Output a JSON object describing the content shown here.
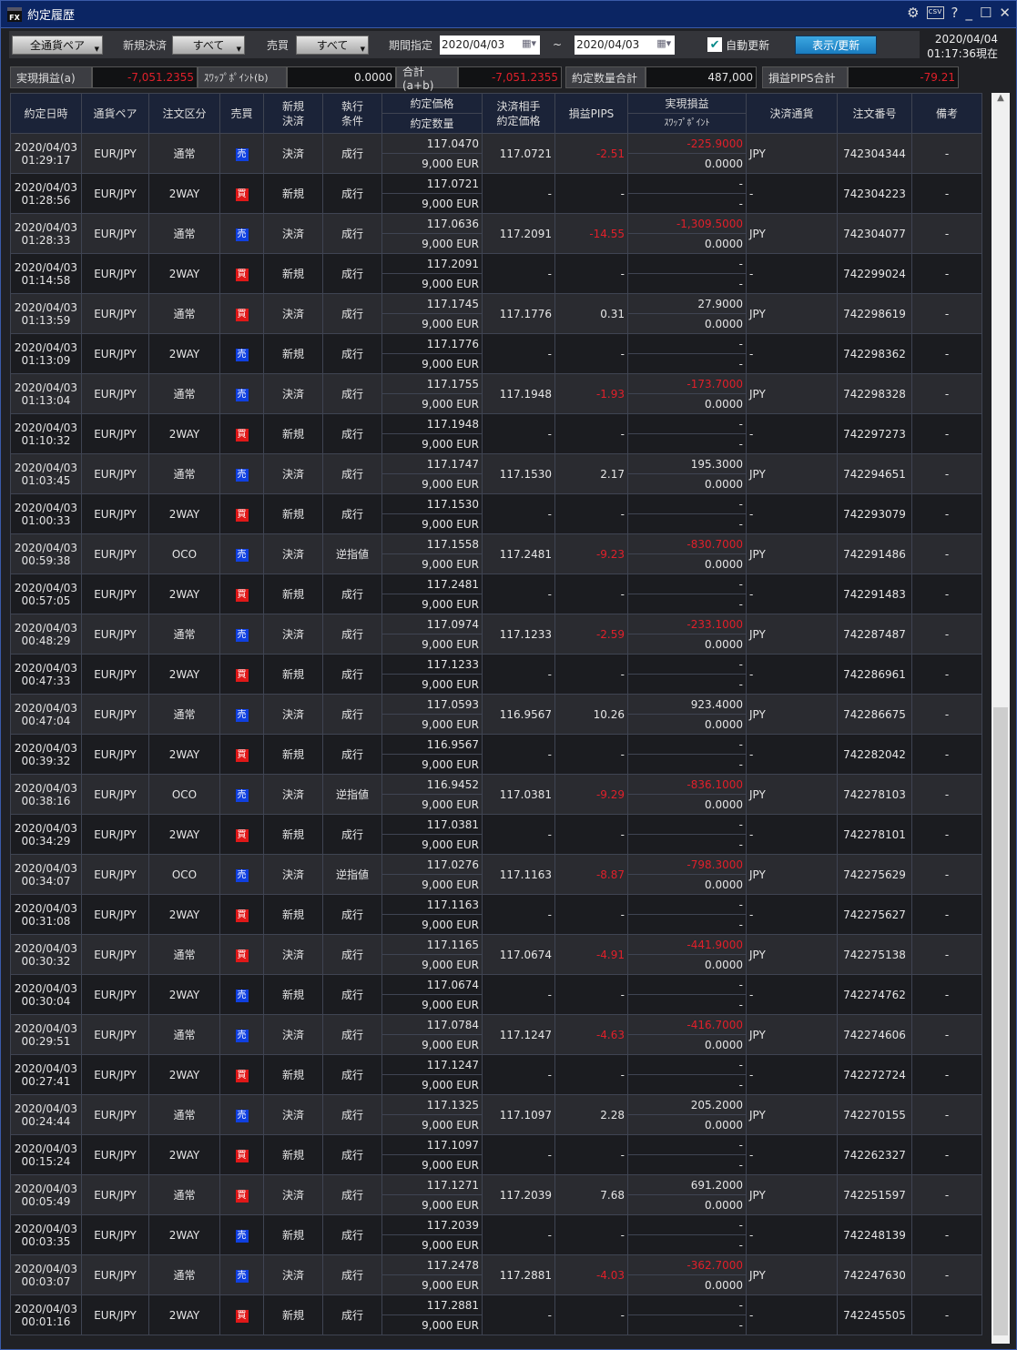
{
  "window": {
    "title": "約定履歴",
    "controls": [
      "settings-icon",
      "csv-icon",
      "help-icon",
      "minimize-icon",
      "maximize-icon",
      "close-icon"
    ]
  },
  "toolbar": {
    "pair": "全通貨ペア",
    "new_close_label": "新規決済",
    "new_close_value": "すべて",
    "side_label": "売買",
    "side_value": "すべて",
    "period_label": "期間指定",
    "date_from": "2020/04/03",
    "tilde": "~",
    "date_to": "2020/04/03",
    "auto_update": "自動更新",
    "auto_update_checked": true,
    "refresh": "表示/更新",
    "now_date": "2020/04/04",
    "now_time": "01:17:36現在"
  },
  "summary": {
    "pnl_label": "実現損益(a)",
    "pnl": "-7,051.2355",
    "swap_label": "ｽﾜｯﾌﾟﾎﾟｲﾝﾄ(b)",
    "swap": "0.0000",
    "total_label": "合計(a+b)",
    "total": "-7,051.2355",
    "qty_label": "約定数量合計",
    "qty": "487,000",
    "pips_label": "損益PIPS合計",
    "pips": "-79.21"
  },
  "colors": {
    "sell": "#1040e0",
    "buy": "#e01818",
    "negative": "#e0202a",
    "header": "#1b2338"
  },
  "table": {
    "headers": {
      "datetime": "約定日時",
      "pair": "通貨ペア",
      "order_type": "注文区分",
      "side": "売買",
      "new_close": [
        "新規",
        "決済"
      ],
      "condition": [
        "執行",
        "条件"
      ],
      "price": "約定価格",
      "qty": "約定数量",
      "close_price": [
        "決済相手",
        "約定価格"
      ],
      "pips": "損益PIPS",
      "pnl": "実現損益",
      "swap": "ｽﾜｯﾌﾟﾎﾟｲﾝﾄ",
      "currency": "決済通貨",
      "order_no": "注文番号",
      "note": "備考"
    },
    "pair": "EUR/JPY",
    "date": "2020/04/03",
    "qty": "9,000 EUR",
    "note": "-",
    "rows": [
      [
        "01:29:17",
        "通常",
        "売",
        "決済",
        "成行",
        "117.0470",
        "117.0721",
        "-2.51",
        "-225.9000",
        "0.0000",
        "JPY",
        "742304344"
      ],
      [
        "01:28:56",
        "2WAY",
        "買",
        "新規",
        "成行",
        "117.0721",
        "-",
        "-",
        "-",
        "-",
        "-",
        "742304223"
      ],
      [
        "01:28:33",
        "通常",
        "売",
        "決済",
        "成行",
        "117.0636",
        "117.2091",
        "-14.55",
        "-1,309.5000",
        "0.0000",
        "JPY",
        "742304077"
      ],
      [
        "01:14:58",
        "2WAY",
        "買",
        "新規",
        "成行",
        "117.2091",
        "-",
        "-",
        "-",
        "-",
        "-",
        "742299024"
      ],
      [
        "01:13:59",
        "通常",
        "買",
        "決済",
        "成行",
        "117.1745",
        "117.1776",
        "0.31",
        "27.9000",
        "0.0000",
        "JPY",
        "742298619"
      ],
      [
        "01:13:09",
        "2WAY",
        "売",
        "新規",
        "成行",
        "117.1776",
        "-",
        "-",
        "-",
        "-",
        "-",
        "742298362"
      ],
      [
        "01:13:04",
        "通常",
        "売",
        "決済",
        "成行",
        "117.1755",
        "117.1948",
        "-1.93",
        "-173.7000",
        "0.0000",
        "JPY",
        "742298328"
      ],
      [
        "01:10:32",
        "2WAY",
        "買",
        "新規",
        "成行",
        "117.1948",
        "-",
        "-",
        "-",
        "-",
        "-",
        "742297273"
      ],
      [
        "01:03:45",
        "通常",
        "売",
        "決済",
        "成行",
        "117.1747",
        "117.1530",
        "2.17",
        "195.3000",
        "0.0000",
        "JPY",
        "742294651"
      ],
      [
        "01:00:33",
        "2WAY",
        "買",
        "新規",
        "成行",
        "117.1530",
        "-",
        "-",
        "-",
        "-",
        "-",
        "742293079"
      ],
      [
        "00:59:38",
        "OCO",
        "売",
        "決済",
        "逆指値",
        "117.1558",
        "117.2481",
        "-9.23",
        "-830.7000",
        "0.0000",
        "JPY",
        "742291486"
      ],
      [
        "00:57:05",
        "2WAY",
        "買",
        "新規",
        "成行",
        "117.2481",
        "-",
        "-",
        "-",
        "-",
        "-",
        "742291483"
      ],
      [
        "00:48:29",
        "通常",
        "売",
        "決済",
        "成行",
        "117.0974",
        "117.1233",
        "-2.59",
        "-233.1000",
        "0.0000",
        "JPY",
        "742287487"
      ],
      [
        "00:47:33",
        "2WAY",
        "買",
        "新規",
        "成行",
        "117.1233",
        "-",
        "-",
        "-",
        "-",
        "-",
        "742286961"
      ],
      [
        "00:47:04",
        "通常",
        "売",
        "決済",
        "成行",
        "117.0593",
        "116.9567",
        "10.26",
        "923.4000",
        "0.0000",
        "JPY",
        "742286675"
      ],
      [
        "00:39:32",
        "2WAY",
        "買",
        "新規",
        "成行",
        "116.9567",
        "-",
        "-",
        "-",
        "-",
        "-",
        "742282042"
      ],
      [
        "00:38:16",
        "OCO",
        "売",
        "決済",
        "逆指値",
        "116.9452",
        "117.0381",
        "-9.29",
        "-836.1000",
        "0.0000",
        "JPY",
        "742278103"
      ],
      [
        "00:34:29",
        "2WAY",
        "買",
        "新規",
        "成行",
        "117.0381",
        "-",
        "-",
        "-",
        "-",
        "-",
        "742278101"
      ],
      [
        "00:34:07",
        "OCO",
        "売",
        "決済",
        "逆指値",
        "117.0276",
        "117.1163",
        "-8.87",
        "-798.3000",
        "0.0000",
        "JPY",
        "742275629"
      ],
      [
        "00:31:08",
        "2WAY",
        "買",
        "新規",
        "成行",
        "117.1163",
        "-",
        "-",
        "-",
        "-",
        "-",
        "742275627"
      ],
      [
        "00:30:32",
        "通常",
        "買",
        "決済",
        "成行",
        "117.1165",
        "117.0674",
        "-4.91",
        "-441.9000",
        "0.0000",
        "JPY",
        "742275138"
      ],
      [
        "00:30:04",
        "2WAY",
        "売",
        "新規",
        "成行",
        "117.0674",
        "-",
        "-",
        "-",
        "-",
        "-",
        "742274762"
      ],
      [
        "00:29:51",
        "通常",
        "売",
        "決済",
        "成行",
        "117.0784",
        "117.1247",
        "-4.63",
        "-416.7000",
        "0.0000",
        "JPY",
        "742274606"
      ],
      [
        "00:27:41",
        "2WAY",
        "買",
        "新規",
        "成行",
        "117.1247",
        "-",
        "-",
        "-",
        "-",
        "-",
        "742272724"
      ],
      [
        "00:24:44",
        "通常",
        "売",
        "決済",
        "成行",
        "117.1325",
        "117.1097",
        "2.28",
        "205.2000",
        "0.0000",
        "JPY",
        "742270155"
      ],
      [
        "00:15:24",
        "2WAY",
        "買",
        "新規",
        "成行",
        "117.1097",
        "-",
        "-",
        "-",
        "-",
        "-",
        "742262327"
      ],
      [
        "00:05:49",
        "通常",
        "買",
        "決済",
        "成行",
        "117.1271",
        "117.2039",
        "7.68",
        "691.2000",
        "0.0000",
        "JPY",
        "742251597"
      ],
      [
        "00:03:35",
        "2WAY",
        "売",
        "新規",
        "成行",
        "117.2039",
        "-",
        "-",
        "-",
        "-",
        "-",
        "742248139"
      ],
      [
        "00:03:07",
        "通常",
        "売",
        "決済",
        "成行",
        "117.2478",
        "117.2881",
        "-4.03",
        "-362.7000",
        "0.0000",
        "JPY",
        "742247630"
      ],
      [
        "00:01:16",
        "2WAY",
        "買",
        "新規",
        "成行",
        "117.2881",
        "-",
        "-",
        "-",
        "-",
        "-",
        "742245505"
      ]
    ]
  }
}
